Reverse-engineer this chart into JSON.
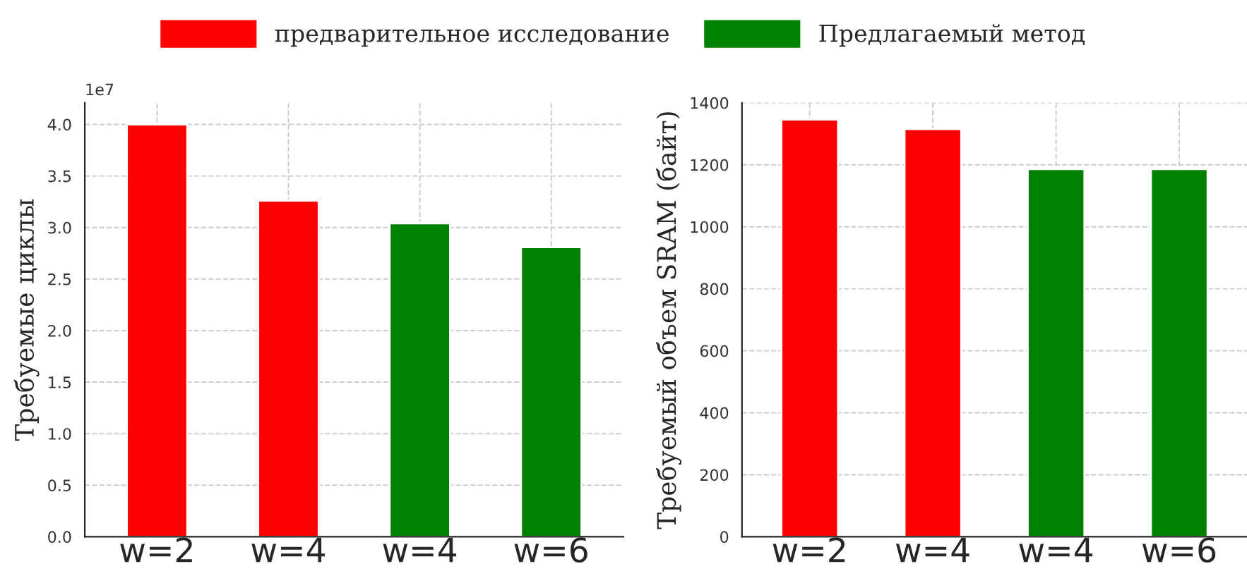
{
  "chart_data": [
    {
      "type": "bar",
      "categories": [
        "w=2",
        "w=4",
        "w=4",
        "w=6"
      ],
      "ylabel": "Требуемые циклы",
      "series": [
        {
          "name": "предварительное исследование",
          "color": "#ff0000",
          "values": [
            4.0,
            3.26,
            null,
            null
          ]
        },
        {
          "name": "Предлагаемый метод",
          "color": "#008000",
          "values": [
            null,
            null,
            3.04,
            2.81
          ]
        }
      ],
      "ylim": [
        0,
        4.21
      ],
      "yticks": [
        {
          "value": 0,
          "label": "0.0"
        },
        0.5,
        {
          "value": 1,
          "label": "1.0"
        },
        1.5,
        {
          "value": 2,
          "label": "2.0"
        },
        2.5,
        {
          "value": 3,
          "label": "3.0"
        },
        3.5,
        {
          "value": 4,
          "label": "4.0"
        }
      ],
      "annotations": [
        "1e7"
      ],
      "grid": true,
      "legend": "top"
    },
    {
      "type": "bar",
      "categories": [
        "w=2",
        "w=4",
        "w=4",
        "w=6"
      ],
      "ylabel": "Требуемый объем SRAM (байт)",
      "series": [
        {
          "color": "#ff0000",
          "values": [
            1346,
            1315,
            null,
            null
          ]
        },
        {
          "color": "#008000",
          "values": [
            null,
            null,
            1186,
            1186
          ]
        }
      ],
      "ylim": [
        0,
        1400
      ],
      "yticks": [
        0,
        200,
        400,
        600,
        800,
        1000,
        1200,
        1400
      ],
      "grid": true
    }
  ]
}
